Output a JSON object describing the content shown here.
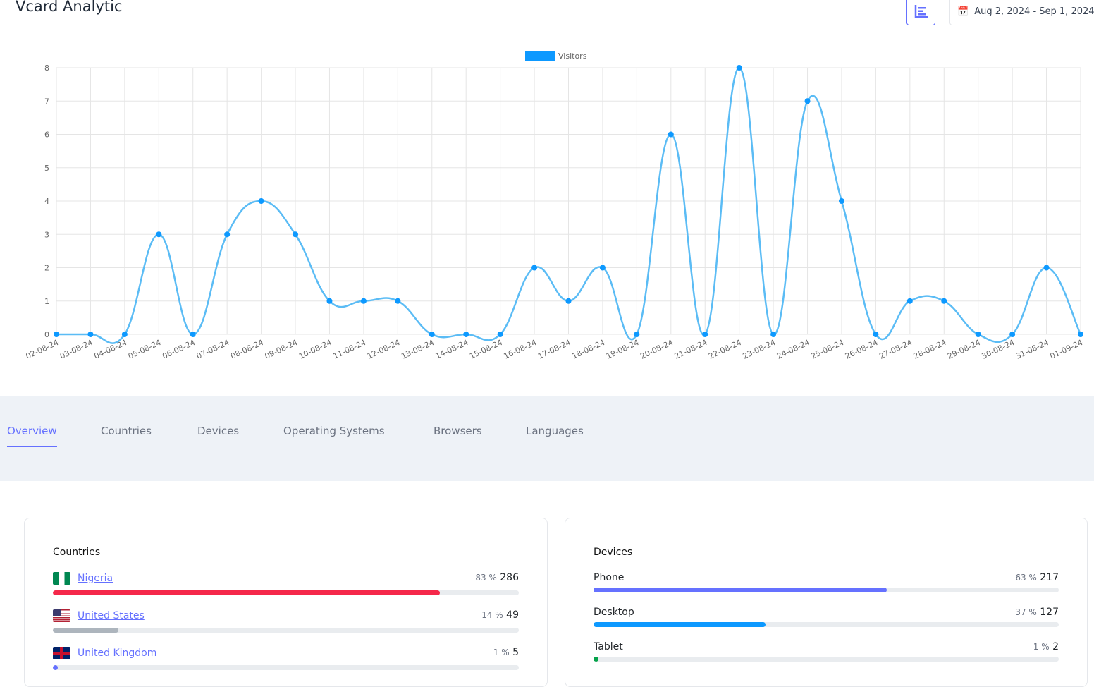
{
  "header": {
    "title": "Vcard Analytic",
    "date_range": "Aug 2, 2024 - Sep 1, 2024"
  },
  "chart_data": {
    "type": "line",
    "legend": [
      "Visitors"
    ],
    "legend_position": "top",
    "series": [
      {
        "name": "Visitors",
        "color": "#0d99ff",
        "values": [
          0,
          0,
          0,
          3,
          0,
          3,
          4,
          3,
          1,
          1,
          1,
          0,
          0,
          0,
          2,
          1,
          2,
          0,
          6,
          0,
          8,
          0,
          7,
          4,
          0,
          1,
          1,
          0,
          0,
          2,
          0
        ]
      }
    ],
    "categories": [
      "02-08-24",
      "03-08-24",
      "04-08-24",
      "05-08-24",
      "06-08-24",
      "07-08-24",
      "08-08-24",
      "09-08-24",
      "10-08-24",
      "11-08-24",
      "12-08-24",
      "13-08-24",
      "14-08-24",
      "15-08-24",
      "16-08-24",
      "17-08-24",
      "18-08-24",
      "19-08-24",
      "20-08-24",
      "21-08-24",
      "22-08-24",
      "23-08-24",
      "24-08-24",
      "25-08-24",
      "26-08-24",
      "27-08-24",
      "28-08-24",
      "29-08-24",
      "30-08-24",
      "31-08-24",
      "01-09-24"
    ],
    "ylim": [
      0,
      8
    ],
    "yticks": [
      "0",
      "1",
      "2",
      "3",
      "4",
      "5",
      "6",
      "7",
      "8"
    ],
    "grid": true
  },
  "tabs": [
    "Overview",
    "Countries",
    "Devices",
    "Operating Systems",
    "Browsers",
    "Languages"
  ],
  "countries": {
    "title": "Countries",
    "items": [
      {
        "name": "Nigeria",
        "pct": "83 %",
        "count": "286",
        "fill": 83,
        "color": "#f5284a"
      },
      {
        "name": "United States",
        "pct": "14 %",
        "count": "49",
        "fill": 14,
        "color": "#adb5bd"
      },
      {
        "name": "United Kingdom",
        "pct": "1 %",
        "count": "5",
        "fill": 1,
        "color": "#6571ff"
      }
    ]
  },
  "devices": {
    "title": "Devices",
    "items": [
      {
        "name": "Phone",
        "pct": "63 %",
        "count": "217",
        "fill": 63,
        "color": "#6571ff"
      },
      {
        "name": "Desktop",
        "pct": "37 %",
        "count": "127",
        "fill": 37,
        "color": "#0d99ff"
      },
      {
        "name": "Tablet",
        "pct": "1 %",
        "count": "2",
        "fill": 1,
        "color": "#05a34a"
      }
    ]
  }
}
